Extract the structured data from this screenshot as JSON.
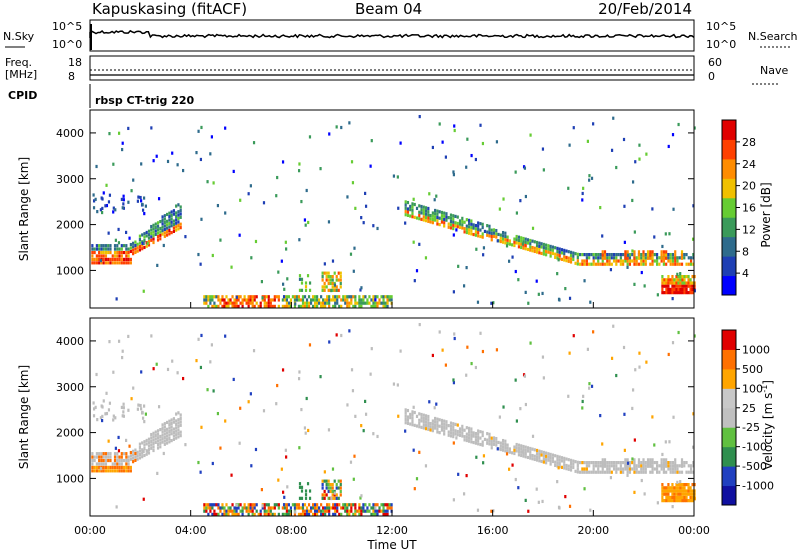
{
  "header": {
    "title": "Kapuskasing (fitACF)",
    "beam": "Beam 04",
    "date": "20/Feb/2014",
    "cpid_label": "CPID",
    "cpid_value": "rbsp CT-trig 220"
  },
  "noise_panel": {
    "left_label": "N.Sky",
    "right_label": "N.Search",
    "left_ticks": [
      "10^5",
      "10^0"
    ],
    "right_ticks": [
      "10^5",
      "10^0"
    ]
  },
  "freq_panel": {
    "left_label_line1": "Freq.",
    "left_label_line2": "[MHz]",
    "right_label": "Nave",
    "left_ticks": [
      "18",
      "8"
    ],
    "right_ticks": [
      "60",
      "0"
    ]
  },
  "colors": {
    "power_scale": [
      "#0000ff",
      "#1e3fb4",
      "#2e6b8c",
      "#3a9a5a",
      "#66cc33",
      "#f0c000",
      "#ff8c00",
      "#ff4000",
      "#e00000"
    ],
    "velocity_scale": [
      "#1010a0",
      "#2040c0",
      "#2f8f4f",
      "#60c040",
      "#c0c0c0",
      "#c8c8c8",
      "#ffa500",
      "#ff7000",
      "#e00000"
    ],
    "ground_scatter": "#bdbdbd"
  },
  "chart_data": [
    {
      "type": "heatmap",
      "name_key": "power",
      "ylabel": "Slant Range [km]",
      "ylim": [
        180,
        4500
      ],
      "yticks": [
        "1000",
        "2000",
        "3000",
        "4000"
      ],
      "xlim_hours": [
        0,
        24
      ],
      "colorbar": {
        "label": "Power [dB]",
        "ticks": [
          "4",
          "8",
          "12",
          "16",
          "20",
          "24",
          "28"
        ],
        "range": [
          0,
          30
        ]
      },
      "regions": [
        {
          "t0": 0.05,
          "t1": 3.6,
          "r0": 1250,
          "r1": 2300,
          "note": "scatter band rising"
        },
        {
          "t0": 0.1,
          "t1": 1.6,
          "r0": 1200,
          "r1": 1350,
          "note": "strong band"
        },
        {
          "t0": 4.5,
          "t1": 12.0,
          "r0": 250,
          "r1": 500,
          "note": "near-range echoes"
        },
        {
          "t0": 9.2,
          "t1": 10.0,
          "r0": 600,
          "r1": 1050,
          "note": "mid echoes"
        },
        {
          "t0": 12.5,
          "t1": 24.0,
          "r0": 1200,
          "r1": 2600,
          "note": "descending band"
        },
        {
          "t0": 22.7,
          "t1": 24.0,
          "r0": 550,
          "r1": 950,
          "note": "strong near echoes"
        }
      ]
    },
    {
      "type": "heatmap",
      "name_key": "velocity",
      "ylabel": "Slant Range [km]",
      "ylim": [
        180,
        4500
      ],
      "yticks": [
        "1000",
        "2000",
        "3000",
        "4000"
      ],
      "xlim_hours": [
        0,
        24
      ],
      "xticks": [
        "00:00",
        "04:00",
        "08:00",
        "12:00",
        "16:00",
        "20:00",
        "00:00"
      ],
      "xlabel": "Time UT",
      "colorbar": {
        "label": "Velocity [m s",
        "label_sup": "-1",
        "label_end": "]",
        "ticks": [
          "1000",
          "500",
          "100",
          "25",
          "-25",
          "-100",
          "-500",
          "-1000"
        ]
      }
    }
  ]
}
